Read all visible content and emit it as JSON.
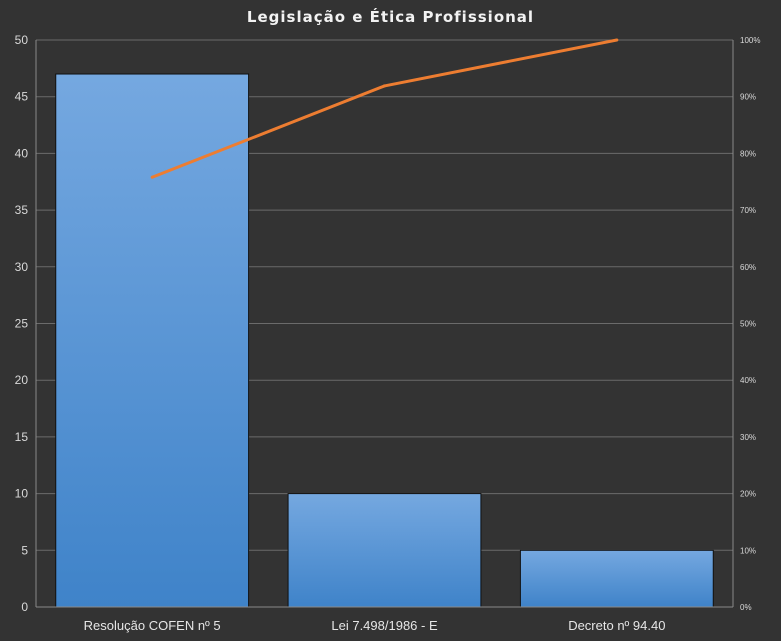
{
  "chart_data": {
    "type": "bar",
    "title": "Legislação e Ética Profissional",
    "categories": [
      "Resolução COFEN nº 5",
      "Lei 7.498/1986 - E",
      "Decreto nº 94.40"
    ],
    "series": [
      {
        "type": "bar",
        "values": [
          47,
          10,
          5
        ],
        "color": "#5b9bd5"
      },
      {
        "type": "line",
        "axis": "secondary",
        "values": [
          0.758,
          0.919,
          1.0
        ],
        "color": "#ed7d31"
      }
    ],
    "y_ticks": [
      "0",
      "5",
      "10",
      "15",
      "20",
      "25",
      "30",
      "35",
      "40",
      "45",
      "50"
    ],
    "y2_ticks": [
      "0%",
      "10%",
      "20%",
      "30%",
      "40%",
      "50%",
      "60%",
      "70%",
      "80%",
      "90%",
      "100%"
    ],
    "ylim": [
      0,
      50
    ],
    "y2lim": [
      0,
      1
    ],
    "grid": true,
    "legend": "none",
    "colors": {
      "background": "#333333",
      "grid": "#6b6b6b",
      "bar": "#5b9bd5",
      "line": "#ed7d31"
    }
  }
}
